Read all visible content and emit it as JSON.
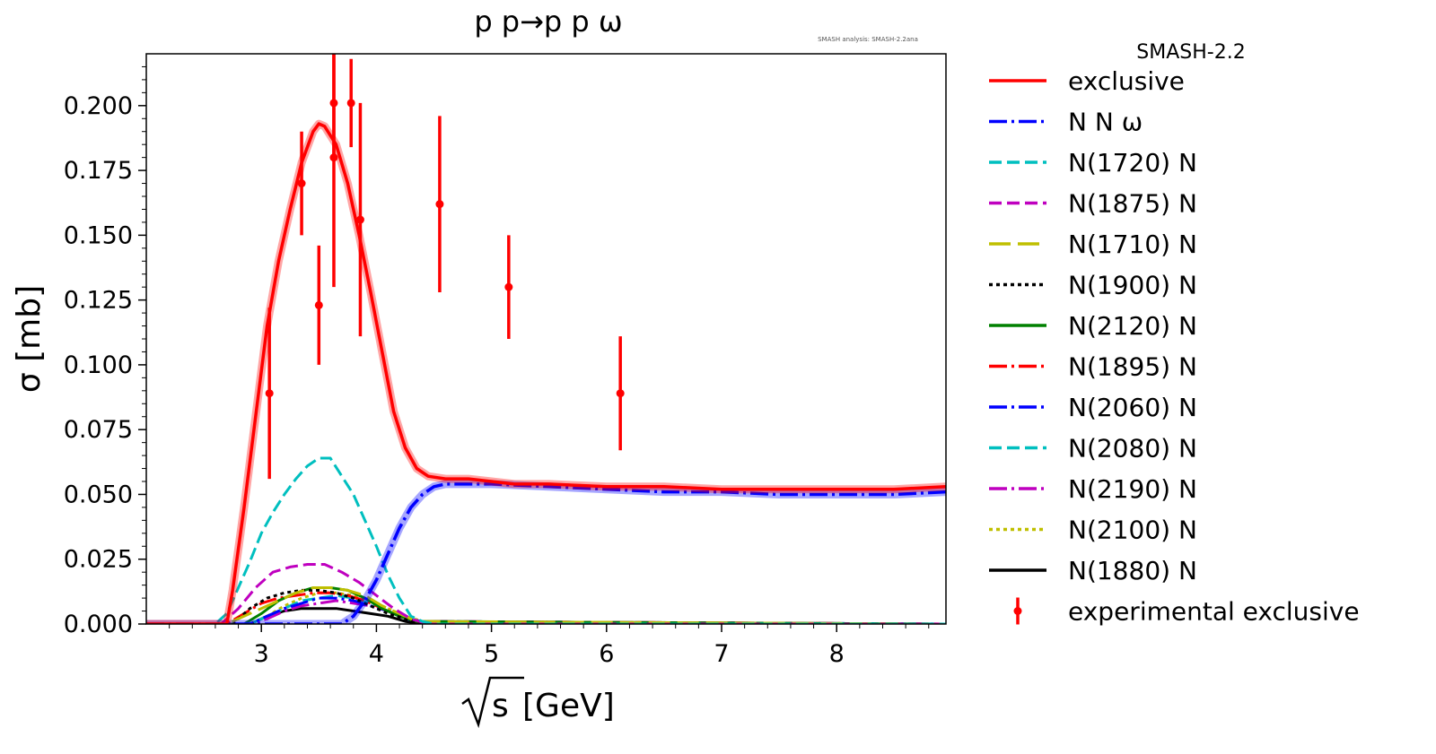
{
  "chart_data": {
    "type": "line",
    "title": "p p→p p ω",
    "watermark": "SMASH analysis: SMASH-2.2ana",
    "xlabel_root": "s",
    "xlabel_unit": "[GeV]",
    "ylabel": "σ [mb]",
    "xlim": [
      2.0,
      8.95
    ],
    "ylim": [
      0.0,
      0.22
    ],
    "xticks": [
      3,
      4,
      5,
      6,
      7,
      8
    ],
    "xtick_labels": [
      "3",
      "4",
      "5",
      "6",
      "7",
      "8"
    ],
    "yticks": [
      0.0,
      0.025,
      0.05,
      0.075,
      0.1,
      0.125,
      0.15,
      0.175,
      0.2
    ],
    "ytick_labels": [
      "0.000",
      "0.025",
      "0.050",
      "0.075",
      "0.100",
      "0.125",
      "0.150",
      "0.175",
      "0.200"
    ],
    "grid": false,
    "legend_position": "outside right",
    "legend_title": "SMASH-2.2",
    "series": [
      {
        "name": "exclusive",
        "color": "#ff0000",
        "style": "solid",
        "x": [
          2.0,
          2.7,
          2.75,
          2.85,
          2.95,
          3.05,
          3.15,
          3.25,
          3.35,
          3.45,
          3.5,
          3.55,
          3.65,
          3.75,
          3.85,
          3.95,
          4.05,
          4.15,
          4.25,
          4.35,
          4.45,
          4.6,
          4.8,
          5.0,
          5.2,
          5.5,
          6.0,
          6.5,
          7.0,
          7.5,
          8.0,
          8.5,
          8.95
        ],
        "y": [
          0.0,
          0.0,
          0.013,
          0.045,
          0.08,
          0.115,
          0.14,
          0.16,
          0.178,
          0.19,
          0.193,
          0.192,
          0.185,
          0.17,
          0.15,
          0.128,
          0.105,
          0.082,
          0.068,
          0.06,
          0.057,
          0.056,
          0.056,
          0.055,
          0.054,
          0.054,
          0.053,
          0.053,
          0.052,
          0.052,
          0.052,
          0.052,
          0.053
        ]
      },
      {
        "name": "N N ω",
        "color": "#0000ff",
        "style": "dashdot",
        "x": [
          2.0,
          3.7,
          3.8,
          3.9,
          4.0,
          4.1,
          4.2,
          4.3,
          4.4,
          4.5,
          4.6,
          4.8,
          5.0,
          5.5,
          6.0,
          6.5,
          7.0,
          7.5,
          8.0,
          8.5,
          8.95
        ],
        "y": [
          0.0,
          0.0,
          0.003,
          0.009,
          0.017,
          0.027,
          0.037,
          0.045,
          0.05,
          0.053,
          0.054,
          0.054,
          0.054,
          0.053,
          0.052,
          0.051,
          0.051,
          0.05,
          0.05,
          0.05,
          0.051
        ]
      },
      {
        "name": "N(1720) N",
        "color": "#00bfbf",
        "style": "dashed",
        "x": [
          2.0,
          2.6,
          2.7,
          2.8,
          2.9,
          3.0,
          3.1,
          3.2,
          3.3,
          3.4,
          3.5,
          3.6,
          3.7,
          3.8,
          3.9,
          4.0,
          4.1,
          4.2,
          4.3,
          4.4,
          4.5,
          8.95
        ],
        "y": [
          0.0,
          0.0,
          0.004,
          0.014,
          0.024,
          0.035,
          0.043,
          0.05,
          0.056,
          0.061,
          0.064,
          0.064,
          0.057,
          0.05,
          0.04,
          0.03,
          0.019,
          0.01,
          0.003,
          0.001,
          0.0,
          0.0
        ]
      },
      {
        "name": "N(1875) N",
        "color": "#bf00bf",
        "style": "dashed",
        "x": [
          2.0,
          2.65,
          2.8,
          2.95,
          3.1,
          3.25,
          3.4,
          3.55,
          3.7,
          3.85,
          4.0,
          4.15,
          4.3,
          4.45,
          8.95
        ],
        "y": [
          0.0,
          0.0,
          0.006,
          0.014,
          0.02,
          0.022,
          0.023,
          0.023,
          0.02,
          0.016,
          0.011,
          0.006,
          0.002,
          0.0,
          0.0
        ]
      },
      {
        "name": "N(1710) N",
        "color": "#bfbf00",
        "style": "longdash",
        "x": [
          2.0,
          2.7,
          2.85,
          3.0,
          3.15,
          3.3,
          3.45,
          3.6,
          3.75,
          3.9,
          4.05,
          4.2,
          4.35,
          8.95
        ],
        "y": [
          0.0,
          0.0,
          0.003,
          0.006,
          0.009,
          0.012,
          0.014,
          0.014,
          0.013,
          0.011,
          0.007,
          0.004,
          0.001,
          0.0
        ]
      },
      {
        "name": "N(1900) N",
        "color": "#000000",
        "style": "dotted",
        "x": [
          2.0,
          2.75,
          2.9,
          3.05,
          3.2,
          3.35,
          3.5,
          3.65,
          3.8,
          3.95,
          4.1,
          4.25,
          4.4,
          8.95
        ],
        "y": [
          0.0,
          0.0,
          0.006,
          0.01,
          0.012,
          0.013,
          0.013,
          0.012,
          0.01,
          0.007,
          0.004,
          0.002,
          0.0,
          0.0
        ]
      },
      {
        "name": "N(2120) N",
        "color": "#008000",
        "style": "solid",
        "x": [
          2.0,
          2.85,
          3.0,
          3.15,
          3.3,
          3.45,
          3.6,
          3.75,
          3.9,
          4.05,
          4.2,
          4.35,
          8.95
        ],
        "y": [
          0.0,
          0.0,
          0.004,
          0.009,
          0.012,
          0.014,
          0.014,
          0.013,
          0.01,
          0.006,
          0.003,
          0.001,
          0.0
        ]
      },
      {
        "name": "N(1895) N",
        "color": "#ff0000",
        "style": "dashdot",
        "x": [
          2.0,
          2.7,
          2.85,
          3.0,
          3.15,
          3.3,
          3.45,
          3.6,
          3.75,
          3.9,
          4.05,
          4.2,
          4.35,
          8.95
        ],
        "y": [
          0.0,
          0.0,
          0.004,
          0.008,
          0.01,
          0.011,
          0.012,
          0.012,
          0.011,
          0.009,
          0.006,
          0.003,
          0.001,
          0.0
        ]
      },
      {
        "name": "N(2060) N",
        "color": "#0000ff",
        "style": "dashdot",
        "x": [
          2.0,
          2.9,
          3.05,
          3.2,
          3.35,
          3.5,
          3.65,
          3.8,
          3.95,
          4.1,
          4.25,
          4.4,
          8.95
        ],
        "y": [
          0.0,
          0.0,
          0.003,
          0.006,
          0.008,
          0.01,
          0.01,
          0.009,
          0.007,
          0.005,
          0.002,
          0.001,
          0.0
        ]
      },
      {
        "name": "N(2080) N",
        "color": "#00bfbf",
        "style": "dashed",
        "x": [
          2.0,
          2.9,
          3.05,
          3.2,
          3.35,
          3.5,
          3.65,
          3.8,
          3.95,
          4.1,
          4.25,
          4.4,
          8.95
        ],
        "y": [
          0.0,
          0.0,
          0.003,
          0.006,
          0.009,
          0.01,
          0.011,
          0.01,
          0.008,
          0.005,
          0.002,
          0.001,
          0.0
        ]
      },
      {
        "name": "N(2190) N",
        "color": "#bf00bf",
        "style": "dashdot",
        "x": [
          2.0,
          2.9,
          3.05,
          3.2,
          3.35,
          3.5,
          3.65,
          3.8,
          3.95,
          4.1,
          4.25,
          4.4,
          8.95
        ],
        "y": [
          0.0,
          0.0,
          0.002,
          0.005,
          0.007,
          0.008,
          0.009,
          0.008,
          0.007,
          0.005,
          0.002,
          0.001,
          0.0
        ]
      },
      {
        "name": "N(2100) N",
        "color": "#bfbf00",
        "style": "dotted",
        "x": [
          2.0,
          2.9,
          3.05,
          3.2,
          3.35,
          3.5,
          3.65,
          3.8,
          3.95,
          4.1,
          4.25,
          4.4,
          8.95
        ],
        "y": [
          0.0,
          0.0,
          0.003,
          0.007,
          0.01,
          0.012,
          0.012,
          0.011,
          0.009,
          0.006,
          0.003,
          0.001,
          0.0
        ]
      },
      {
        "name": "N(1880) N",
        "color": "#000000",
        "style": "solid",
        "x": [
          2.0,
          2.9,
          3.05,
          3.2,
          3.35,
          3.5,
          3.65,
          3.8,
          3.95,
          4.1,
          4.25,
          4.4,
          8.95
        ],
        "y": [
          0.0,
          0.0,
          0.003,
          0.005,
          0.006,
          0.006,
          0.006,
          0.005,
          0.004,
          0.003,
          0.001,
          0.0,
          0.0
        ]
      }
    ],
    "experimental": {
      "name": "experimental exclusive",
      "color": "#ff0000",
      "points": [
        {
          "x": 3.07,
          "y": 0.089,
          "err": 0.033
        },
        {
          "x": 3.35,
          "y": 0.17,
          "err": 0.02
        },
        {
          "x": 3.5,
          "y": 0.123,
          "err": 0.023
        },
        {
          "x": 3.63,
          "y": 0.201,
          "err": 0.021
        },
        {
          "x": 3.63,
          "y": 0.18,
          "err": 0.05
        },
        {
          "x": 3.78,
          "y": 0.201,
          "err": 0.017
        },
        {
          "x": 3.86,
          "y": 0.156,
          "err": 0.045
        },
        {
          "x": 4.55,
          "y": 0.162,
          "err": 0.034
        },
        {
          "x": 5.15,
          "y": 0.13,
          "err": 0.02
        },
        {
          "x": 6.12,
          "y": 0.089,
          "err": 0.022
        }
      ]
    }
  }
}
